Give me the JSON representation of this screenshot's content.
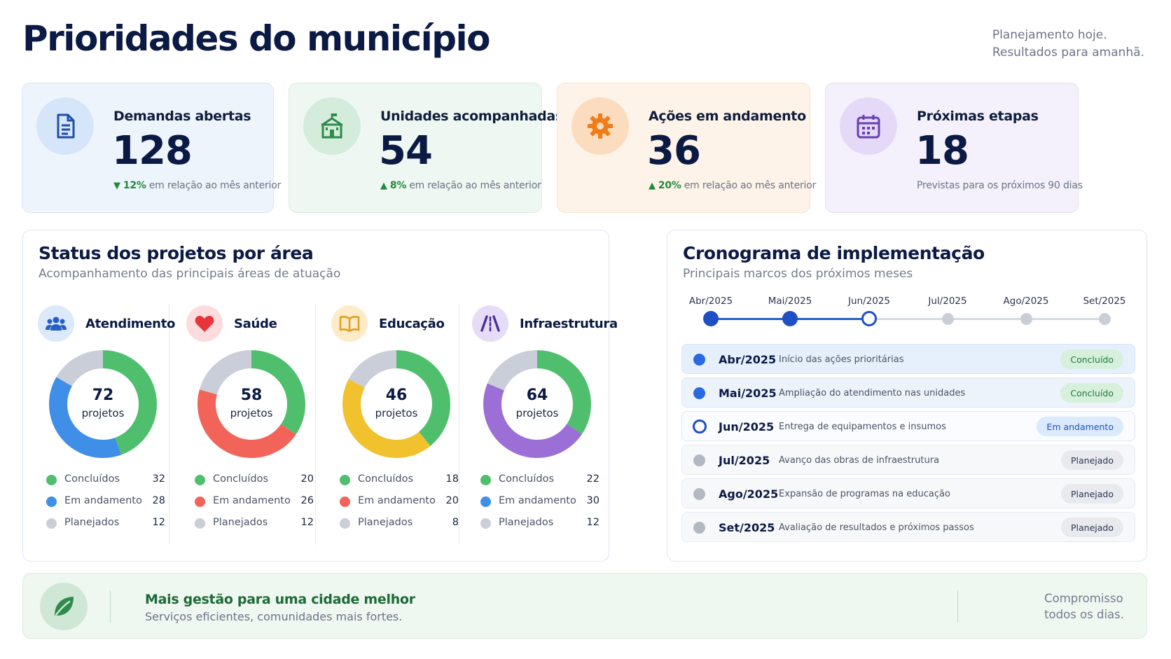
{
  "header": {
    "title": "Prioridades do município",
    "tagline_line1": "Planejamento hoje.",
    "tagline_line2": "Resultados para amanhã."
  },
  "kpis": [
    {
      "label": "Demandas abertas",
      "value": "128",
      "trend": "down",
      "pct": "12%",
      "note": "em relação ao mês anterior",
      "icon": "document-icon",
      "accent": "#1f4fa8"
    },
    {
      "label": "Unidades acompanhadas",
      "value": "54",
      "trend": "up",
      "pct": "8%",
      "note": "em relação ao mês anterior",
      "icon": "school-building-icon",
      "accent": "#2e8b4a"
    },
    {
      "label": "Ações em andamento",
      "value": "36",
      "trend": "up",
      "pct": "20%",
      "note": "em relação ao mês anterior",
      "icon": "gear-icon",
      "accent": "#f07c1a"
    },
    {
      "label": "Próximas etapas",
      "value": "18",
      "trend": "none",
      "pct": "",
      "note": "Previstas para os próximos 90 dias",
      "icon": "calendar-icon",
      "accent": "#6a3fb5"
    }
  ],
  "status_panel": {
    "title": "Status dos projetos por área",
    "subtitle": "Acompanhamento das principais áreas de atuação",
    "center_label": "projetos",
    "legend_labels": [
      "Concluídos",
      "Em andamento",
      "Planejados"
    ],
    "areas": [
      {
        "name": "Atendimento",
        "icon": "people-icon",
        "total": "72",
        "values": [
          32,
          28,
          12
        ],
        "colors": [
          "#4fbf6e",
          "#3f8ee8",
          "#c9ced8"
        ]
      },
      {
        "name": "Saúde",
        "icon": "heart-icon",
        "total": "58",
        "values": [
          20,
          26,
          12
        ],
        "colors": [
          "#4fbf6e",
          "#f2645a",
          "#c9ced8"
        ]
      },
      {
        "name": "Educação",
        "icon": "book-icon",
        "total": "46",
        "values": [
          18,
          20,
          8
        ],
        "colors": [
          "#4fbf6e",
          "#f2c12e",
          "#c9ced8"
        ],
        "legend_colors": [
          "#4fbf6e",
          "#f2645a",
          "#c9ced8"
        ]
      },
      {
        "name": "Infraestrutura",
        "icon": "road-icon",
        "total": "64",
        "values": [
          22,
          30,
          12
        ],
        "colors": [
          "#4fbf6e",
          "#9b6fd6",
          "#c9ced8"
        ],
        "legend_colors": [
          "#4fbf6e",
          "#3f8ee8",
          "#c9ced8"
        ]
      }
    ]
  },
  "schedule_panel": {
    "title": "Cronograma de implementação",
    "subtitle": "Principais marcos dos próximos meses",
    "timeline": [
      "Abr/2025",
      "Mai/2025",
      "Jun/2025",
      "Jul/2025",
      "Ago/2025",
      "Set/2025"
    ],
    "milestones": [
      {
        "date": "Abr/2025",
        "desc": "Início das ações prioritárias",
        "status": "Concluído",
        "state": "done"
      },
      {
        "date": "Mai/2025",
        "desc": "Ampliação do atendimento nas unidades",
        "status": "Concluído",
        "state": "done"
      },
      {
        "date": "Jun/2025",
        "desc": "Entrega de equipamentos e insumos",
        "status": "Em andamento",
        "state": "progress"
      },
      {
        "date": "Jul/2025",
        "desc": "Avanço das obras de infraestrutura",
        "status": "Planejado",
        "state": "planned"
      },
      {
        "date": "Ago/2025",
        "desc": "Expansão de programas na educação",
        "status": "Planejado",
        "state": "planned"
      },
      {
        "date": "Set/2025",
        "desc": "Avaliação de resultados e próximos passos",
        "status": "Planejado",
        "state": "planned"
      }
    ]
  },
  "footer": {
    "title": "Mais gestão para uma cidade melhor",
    "subtitle": "Serviços eficientes, comunidades mais fortes.",
    "right_line1": "Compromisso",
    "right_line2": "todos os dias."
  }
}
